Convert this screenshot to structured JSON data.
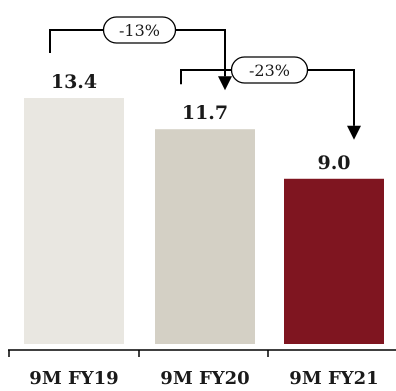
{
  "chart_data": {
    "type": "bar",
    "categories": [
      "9M FY19",
      "9M FY20",
      "9M FY21"
    ],
    "values": [
      13.4,
      11.7,
      9.0
    ],
    "value_labels": [
      "13.4",
      "11.7",
      "9.0"
    ],
    "colors": [
      "#e9e7e1",
      "#d4d0c5",
      "#7f1520"
    ],
    "title": "",
    "xlabel": "",
    "ylabel": "",
    "ylim": [
      0,
      13.4
    ],
    "grid": false,
    "legend": "none",
    "annotations": [
      {
        "from": 0,
        "to": 1,
        "text": "-13%"
      },
      {
        "from": 1,
        "to": 2,
        "text": "-23%"
      }
    ]
  }
}
